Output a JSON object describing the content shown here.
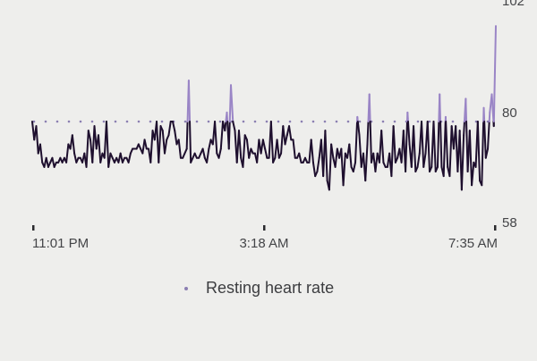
{
  "chart_data": {
    "type": "line",
    "x_tick_labels": [
      "11:01 PM",
      "3:18 AM",
      "7:35 AM"
    ],
    "y_tick_labels": [
      "102",
      "80",
      "58"
    ],
    "ylim": [
      58,
      102
    ],
    "reference_line": {
      "label": "Resting heart rate",
      "value": 80
    },
    "colors": {
      "line": "#1e0f2e",
      "above_reference": "#9a85c6",
      "reference_dots": "#8b7fb2"
    },
    "series": [
      {
        "values": [
          80,
          76,
          79,
          73,
          75,
          71,
          70,
          72,
          70,
          71,
          72,
          70,
          71,
          71,
          72,
          71,
          72,
          71,
          75,
          74,
          77,
          73,
          71,
          72,
          72,
          71,
          73,
          70,
          78,
          76,
          71,
          79,
          74,
          77,
          71,
          73,
          72,
          80,
          70,
          73,
          72,
          71,
          72,
          71,
          73,
          71,
          72,
          72,
          71,
          73,
          74,
          74,
          74,
          75,
          74,
          73,
          76,
          74,
          74,
          71,
          78,
          76,
          80,
          71,
          79,
          78,
          73,
          76,
          77,
          80,
          80,
          78,
          75,
          76,
          72,
          72,
          73,
          74,
          89,
          71,
          72,
          73,
          72,
          72,
          73,
          74,
          72,
          71,
          74,
          76,
          75,
          80,
          73,
          72,
          74,
          80,
          78,
          82,
          74,
          88,
          80,
          78,
          71,
          78,
          72,
          70,
          77,
          76,
          72,
          74,
          73,
          73,
          71,
          76,
          73,
          76,
          74,
          72,
          72,
          80,
          71,
          72,
          76,
          72,
          73,
          79,
          75,
          77,
          79,
          76,
          76,
          72,
          72,
          73,
          71,
          71,
          72,
          71,
          71,
          76,
          71,
          68,
          69,
          72,
          76,
          68,
          78,
          67,
          65,
          75,
          72,
          70,
          74,
          72,
          74,
          66,
          73,
          72,
          75,
          70,
          69,
          71,
          81,
          77,
          70,
          73,
          67,
          75,
          86,
          71,
          73,
          69,
          73,
          71,
          78,
          71,
          70,
          70,
          73,
          68,
          79,
          71,
          72,
          74,
          71,
          78,
          69,
          82,
          75,
          70,
          79,
          69,
          70,
          73,
          80,
          70,
          73,
          80,
          69,
          70,
          80,
          69,
          70,
          86,
          70,
          68,
          81,
          70,
          68,
          79,
          74,
          79,
          69,
          78,
          65,
          77,
          85,
          69,
          78,
          66,
          71,
          70,
          80,
          67,
          66,
          83,
          72,
          74,
          82,
          86,
          79,
          101
        ]
      }
    ]
  }
}
